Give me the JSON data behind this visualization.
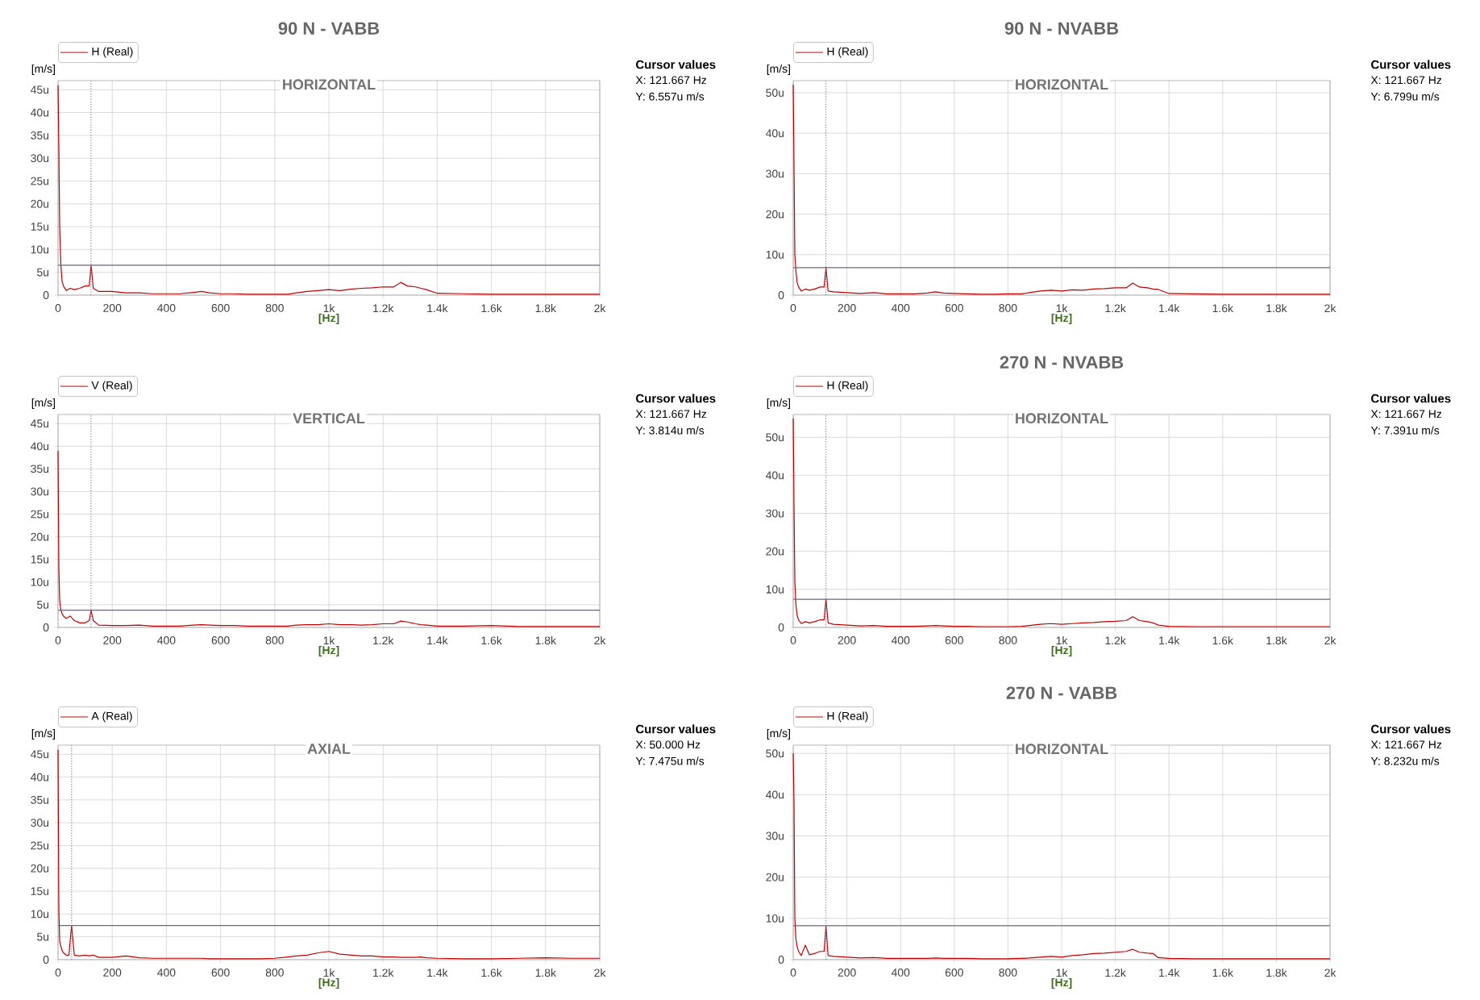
{
  "chart_data": [
    {
      "type": "line",
      "title": "90 N - VABB",
      "xlabel": "[Hz]",
      "ylabel": "[m/s]",
      "annotations": [
        "HORIZONTAL",
        "Cursor values",
        "X: 121.667 Hz",
        "Y: 6.557u m/s"
      ],
      "x": [
        0,
        3,
        6,
        10,
        15,
        20,
        30,
        45,
        60,
        80,
        100,
        115,
        122,
        130,
        150,
        200,
        250,
        300,
        350,
        400,
        450,
        500,
        530,
        560,
        600,
        650,
        700,
        750,
        800,
        850,
        880,
        920,
        960,
        1000,
        1040,
        1080,
        1120,
        1160,
        1200,
        1240,
        1265,
        1290,
        1320,
        1340,
        1360,
        1400,
        1500,
        1600,
        1700,
        1800,
        1900,
        2000
      ],
      "series": [
        {
          "name": "H (Real)",
          "color": "#c00000",
          "values": [
            46,
            32,
            15,
            7,
            3,
            2,
            1,
            1.5,
            1.2,
            1.5,
            2,
            2,
            6.5,
            1.5,
            0.8,
            0.8,
            0.5,
            0.5,
            0.3,
            0.3,
            0.3,
            0.6,
            0.8,
            0.5,
            0.3,
            0.3,
            0.2,
            0.2,
            0.2,
            0.2,
            0.5,
            0.8,
            1,
            1.2,
            1,
            1.3,
            1.5,
            1.6,
            1.8,
            1.8,
            2.8,
            2,
            1.8,
            1.5,
            1.2,
            0.4,
            0.3,
            0.2,
            0.2,
            0.2,
            0.2,
            0.2
          ]
        }
      ],
      "xlim": [
        0,
        2000
      ],
      "ylim": [
        0,
        47
      ],
      "xticks": [
        0,
        200,
        400,
        600,
        800,
        {
          "value": 1000,
          "label": "1k"
        },
        {
          "value": 1200,
          "label": "1.2k"
        },
        {
          "value": 1400,
          "label": "1.4k"
        },
        {
          "value": 1600,
          "label": "1.6k"
        },
        {
          "value": 1800,
          "label": "1.8k"
        },
        {
          "value": 2000,
          "label": "2k"
        }
      ],
      "yticks": [
        0,
        {
          "value": 5,
          "label": "5u"
        },
        {
          "value": 10,
          "label": "10u"
        },
        {
          "value": 15,
          "label": "15u"
        },
        {
          "value": 20,
          "label": "20u"
        },
        {
          "value": 25,
          "label": "25u"
        },
        {
          "value": 30,
          "label": "30u"
        },
        {
          "value": 35,
          "label": "35u"
        },
        {
          "value": 40,
          "label": "40u"
        },
        {
          "value": 45,
          "label": "45u"
        }
      ],
      "ref_lines": [
        {
          "axis": "x",
          "value": 121.667,
          "color": "#8080a0",
          "line_style": "dotted"
        },
        {
          "axis": "y",
          "value": 6.557,
          "color": "#6e6480",
          "line_style": "solid"
        }
      ],
      "grid": true,
      "legend": "top"
    },
    {
      "type": "line",
      "title": "90 N - NVABB",
      "xlabel": "[Hz]",
      "ylabel": "[m/s]",
      "annotations": [
        "HORIZONTAL",
        "Cursor values",
        "X: 121.667 Hz",
        "Y: 6.799u m/s"
      ],
      "x": [
        0,
        3,
        6,
        10,
        15,
        20,
        30,
        45,
        60,
        80,
        100,
        115,
        122,
        130,
        150,
        200,
        250,
        300,
        350,
        400,
        450,
        500,
        530,
        560,
        600,
        650,
        700,
        750,
        800,
        850,
        880,
        920,
        960,
        1000,
        1040,
        1080,
        1120,
        1160,
        1200,
        1240,
        1265,
        1290,
        1320,
        1340,
        1360,
        1400,
        1500,
        1600,
        1700,
        1800,
        1900,
        2000
      ],
      "series": [
        {
          "name": "H (Real)",
          "color": "#c00000",
          "values": [
            52,
            32,
            10,
            6,
            3,
            2,
            1,
            1.5,
            1.2,
            1.5,
            2,
            2,
            6.8,
            1,
            0.8,
            0.6,
            0.4,
            0.6,
            0.3,
            0.3,
            0.3,
            0.5,
            0.8,
            0.5,
            0.4,
            0.3,
            0.2,
            0.2,
            0.3,
            0.3,
            0.6,
            1,
            1.2,
            1,
            1.3,
            1.2,
            1.5,
            1.6,
            1.8,
            1.8,
            3,
            2,
            1.8,
            1.5,
            1.4,
            0.4,
            0.3,
            0.2,
            0.2,
            0.2,
            0.2,
            0.2
          ]
        }
      ],
      "xlim": [
        0,
        2000
      ],
      "ylim": [
        0,
        53
      ],
      "xticks": [
        0,
        200,
        400,
        600,
        800,
        {
          "value": 1000,
          "label": "1k"
        },
        {
          "value": 1200,
          "label": "1.2k"
        },
        {
          "value": 1400,
          "label": "1.4k"
        },
        {
          "value": 1600,
          "label": "1.6k"
        },
        {
          "value": 1800,
          "label": "1.8k"
        },
        {
          "value": 2000,
          "label": "2k"
        }
      ],
      "yticks": [
        0,
        {
          "value": 10,
          "label": "10u"
        },
        {
          "value": 20,
          "label": "20u"
        },
        {
          "value": 30,
          "label": "30u"
        },
        {
          "value": 40,
          "label": "40u"
        },
        {
          "value": 50,
          "label": "50u"
        }
      ],
      "ref_lines": [
        {
          "axis": "x",
          "value": 121.667,
          "color": "#8080a0",
          "line_style": "dotted"
        },
        {
          "axis": "y",
          "value": 6.799,
          "color": "#6e6480",
          "line_style": "solid"
        }
      ],
      "grid": true,
      "legend": "top"
    },
    {
      "type": "line",
      "xlabel": "[Hz]",
      "ylabel": "[m/s]",
      "annotations": [
        "VERTICAL",
        "Cursor values",
        "X: 121.667 Hz",
        "Y: 3.814u m/s"
      ],
      "x": [
        0,
        3,
        6,
        10,
        15,
        20,
        30,
        45,
        60,
        80,
        100,
        115,
        122,
        130,
        150,
        200,
        250,
        300,
        350,
        400,
        450,
        500,
        530,
        560,
        600,
        650,
        700,
        750,
        800,
        850,
        880,
        920,
        960,
        1000,
        1040,
        1080,
        1120,
        1160,
        1200,
        1240,
        1265,
        1290,
        1320,
        1340,
        1360,
        1400,
        1500,
        1600,
        1700,
        1800,
        1900,
        2000
      ],
      "series": [
        {
          "name": "V (Real)",
          "color": "#c00000",
          "values": [
            39,
            13,
            6,
            4,
            3,
            2.5,
            2,
            2.5,
            1.5,
            1,
            1,
            1.5,
            3.8,
            1.5,
            0.5,
            0.4,
            0.4,
            0.5,
            0.3,
            0.3,
            0.3,
            0.5,
            0.6,
            0.5,
            0.4,
            0.4,
            0.3,
            0.3,
            0.3,
            0.3,
            0.5,
            0.6,
            0.6,
            0.8,
            0.6,
            0.6,
            0.5,
            0.6,
            0.8,
            0.8,
            1.4,
            1.2,
            0.8,
            0.6,
            0.5,
            0.3,
            0.3,
            0.4,
            0.2,
            0.2,
            0.2,
            0.2
          ]
        }
      ],
      "xlim": [
        0,
        2000
      ],
      "ylim": [
        0,
        47
      ],
      "xticks": [
        0,
        200,
        400,
        600,
        800,
        {
          "value": 1000,
          "label": "1k"
        },
        {
          "value": 1200,
          "label": "1.2k"
        },
        {
          "value": 1400,
          "label": "1.4k"
        },
        {
          "value": 1600,
          "label": "1.6k"
        },
        {
          "value": 1800,
          "label": "1.8k"
        },
        {
          "value": 2000,
          "label": "2k"
        }
      ],
      "yticks": [
        0,
        {
          "value": 5,
          "label": "5u"
        },
        {
          "value": 10,
          "label": "10u"
        },
        {
          "value": 15,
          "label": "15u"
        },
        {
          "value": 20,
          "label": "20u"
        },
        {
          "value": 25,
          "label": "25u"
        },
        {
          "value": 30,
          "label": "30u"
        },
        {
          "value": 35,
          "label": "35u"
        },
        {
          "value": 40,
          "label": "40u"
        },
        {
          "value": 45,
          "label": "45u"
        }
      ],
      "ref_lines": [
        {
          "axis": "x",
          "value": 121.667,
          "color": "#8080a0",
          "line_style": "dotted"
        },
        {
          "axis": "y",
          "value": 3.814,
          "color": "#6e6480",
          "line_style": "solid"
        }
      ],
      "grid": true,
      "legend": "top"
    },
    {
      "type": "line",
      "title": "270 N - NVABB",
      "xlabel": "[Hz]",
      "ylabel": "[m/s]",
      "annotations": [
        "HORIZONTAL",
        "Cursor values",
        "X: 121.667 Hz",
        "Y: 7.391u m/s"
      ],
      "x": [
        0,
        3,
        6,
        10,
        15,
        20,
        30,
        45,
        60,
        80,
        100,
        115,
        122,
        130,
        150,
        200,
        250,
        300,
        350,
        400,
        450,
        500,
        530,
        560,
        600,
        650,
        700,
        750,
        800,
        850,
        880,
        920,
        960,
        1000,
        1040,
        1080,
        1120,
        1160,
        1200,
        1240,
        1265,
        1290,
        1320,
        1340,
        1360,
        1400,
        1500,
        1600,
        1700,
        1800,
        1900,
        2000
      ],
      "series": [
        {
          "name": "H (Real)",
          "color": "#c00000",
          "values": [
            55,
            32,
            12,
            6,
            3,
            2,
            1,
            1.5,
            1.2,
            1.5,
            2,
            2,
            7.4,
            1.2,
            0.8,
            0.6,
            0.4,
            0.5,
            0.3,
            0.3,
            0.3,
            0.4,
            0.5,
            0.4,
            0.3,
            0.3,
            0.2,
            0.2,
            0.2,
            0.3,
            0.5,
            0.8,
            1,
            0.8,
            1,
            1.2,
            1.3,
            1.5,
            1.6,
            1.8,
            2.8,
            1.8,
            1.5,
            1.2,
            0.6,
            0.3,
            0.2,
            0.2,
            0.2,
            0.2,
            0.2,
            0.2
          ]
        }
      ],
      "xlim": [
        0,
        2000
      ],
      "ylim": [
        0,
        56
      ],
      "xticks": [
        0,
        200,
        400,
        600,
        800,
        {
          "value": 1000,
          "label": "1k"
        },
        {
          "value": 1200,
          "label": "1.2k"
        },
        {
          "value": 1400,
          "label": "1.4k"
        },
        {
          "value": 1600,
          "label": "1.6k"
        },
        {
          "value": 1800,
          "label": "1.8k"
        },
        {
          "value": 2000,
          "label": "2k"
        }
      ],
      "yticks": [
        0,
        {
          "value": 10,
          "label": "10u"
        },
        {
          "value": 20,
          "label": "20u"
        },
        {
          "value": 30,
          "label": "30u"
        },
        {
          "value": 40,
          "label": "40u"
        },
        {
          "value": 50,
          "label": "50u"
        }
      ],
      "ref_lines": [
        {
          "axis": "x",
          "value": 121.667,
          "color": "#8080a0",
          "line_style": "dotted"
        },
        {
          "axis": "y",
          "value": 7.391,
          "color": "#6e6480",
          "line_style": "solid"
        }
      ],
      "grid": true,
      "legend": "top"
    },
    {
      "type": "line",
      "xlabel": "[Hz]",
      "ylabel": "[m/s]",
      "annotations": [
        "AXIAL",
        "Cursor values",
        "X: 50.000 Hz",
        "Y: 7.475u m/s"
      ],
      "x": [
        0,
        3,
        6,
        10,
        15,
        20,
        30,
        40,
        50,
        60,
        80,
        100,
        115,
        130,
        150,
        200,
        250,
        300,
        350,
        400,
        450,
        500,
        530,
        560,
        600,
        650,
        700,
        750,
        800,
        850,
        880,
        920,
        960,
        1000,
        1040,
        1080,
        1120,
        1160,
        1200,
        1240,
        1265,
        1290,
        1320,
        1340,
        1360,
        1400,
        1500,
        1600,
        1700,
        1800,
        1900,
        2000
      ],
      "series": [
        {
          "name": "A (Real)",
          "color": "#c00000",
          "values": [
            46,
            11,
            4,
            3,
            2,
            1.5,
            1,
            1,
            7.5,
            1,
            0.8,
            1,
            0.8,
            1,
            0.5,
            0.5,
            0.8,
            0.4,
            0.3,
            0.3,
            0.3,
            0.3,
            0.3,
            0.2,
            0.2,
            0.2,
            0.2,
            0.2,
            0.3,
            0.6,
            0.8,
            1,
            1.5,
            1.8,
            1.2,
            1,
            0.8,
            0.8,
            0.6,
            0.6,
            0.5,
            0.5,
            0.5,
            0.6,
            0.4,
            0.3,
            0.2,
            0.2,
            0.3,
            0.4,
            0.3,
            0.3
          ]
        }
      ],
      "xlim": [
        0,
        2000
      ],
      "ylim": [
        0,
        47
      ],
      "xticks": [
        0,
        200,
        400,
        600,
        800,
        {
          "value": 1000,
          "label": "1k"
        },
        {
          "value": 1200,
          "label": "1.2k"
        },
        {
          "value": 1400,
          "label": "1.4k"
        },
        {
          "value": 1600,
          "label": "1.6k"
        },
        {
          "value": 1800,
          "label": "1.8k"
        },
        {
          "value": 2000,
          "label": "2k"
        }
      ],
      "yticks": [
        0,
        {
          "value": 5,
          "label": "5u"
        },
        {
          "value": 10,
          "label": "10u"
        },
        {
          "value": 15,
          "label": "15u"
        },
        {
          "value": 20,
          "label": "20u"
        },
        {
          "value": 25,
          "label": "25u"
        },
        {
          "value": 30,
          "label": "30u"
        },
        {
          "value": 35,
          "label": "35u"
        },
        {
          "value": 40,
          "label": "40u"
        },
        {
          "value": 45,
          "label": "45u"
        }
      ],
      "ref_lines": [
        {
          "axis": "x",
          "value": 50,
          "color": "#8080a0",
          "line_style": "dotted"
        },
        {
          "axis": "y",
          "value": 7.475,
          "color": "#6e6480",
          "line_style": "solid"
        }
      ],
      "grid": true,
      "legend": "top"
    },
    {
      "type": "line",
      "title": "270 N - VABB",
      "xlabel": "[Hz]",
      "ylabel": "[m/s]",
      "annotations": [
        "HORIZONTAL",
        "Cursor values",
        "X: 121.667 Hz",
        "Y: 8.232u m/s"
      ],
      "x": [
        0,
        3,
        6,
        10,
        15,
        20,
        30,
        45,
        60,
        80,
        100,
        115,
        122,
        130,
        150,
        200,
        250,
        300,
        350,
        400,
        450,
        500,
        530,
        560,
        600,
        650,
        700,
        750,
        800,
        850,
        880,
        920,
        960,
        1000,
        1040,
        1080,
        1120,
        1160,
        1200,
        1240,
        1265,
        1290,
        1320,
        1340,
        1360,
        1400,
        1500,
        1600,
        1700,
        1800,
        1900,
        2000
      ],
      "series": [
        {
          "name": "H (Real)",
          "color": "#c00000",
          "values": [
            50,
            38,
            10,
            5,
            3,
            2,
            1,
            3.5,
            1.2,
            1.5,
            2,
            2,
            8.2,
            1,
            0.8,
            0.6,
            0.4,
            0.5,
            0.3,
            0.3,
            0.3,
            0.3,
            0.4,
            0.3,
            0.3,
            0.3,
            0.2,
            0.2,
            0.2,
            0.3,
            0.4,
            0.6,
            0.8,
            0.6,
            1,
            1.2,
            1.5,
            1.6,
            1.8,
            2,
            2.5,
            1.8,
            1.6,
            1.5,
            0.5,
            0.3,
            0.2,
            0.2,
            0.2,
            0.2,
            0.2,
            0.2
          ]
        }
      ],
      "xlim": [
        0,
        2000
      ],
      "ylim": [
        0,
        52
      ],
      "xticks": [
        0,
        200,
        400,
        600,
        800,
        {
          "value": 1000,
          "label": "1k"
        },
        {
          "value": 1200,
          "label": "1.2k"
        },
        {
          "value": 1400,
          "label": "1.4k"
        },
        {
          "value": 1600,
          "label": "1.6k"
        },
        {
          "value": 1800,
          "label": "1.8k"
        },
        {
          "value": 2000,
          "label": "2k"
        }
      ],
      "yticks": [
        0,
        {
          "value": 10,
          "label": "10u"
        },
        {
          "value": 20,
          "label": "20u"
        },
        {
          "value": 30,
          "label": "30u"
        },
        {
          "value": 40,
          "label": "40u"
        },
        {
          "value": 50,
          "label": "50u"
        }
      ],
      "ref_lines": [
        {
          "axis": "x",
          "value": 121.667,
          "color": "#8080a0",
          "line_style": "dotted"
        },
        {
          "axis": "y",
          "value": 8.232,
          "color": "#6e6480",
          "line_style": "solid"
        }
      ],
      "grid": true,
      "legend": "top"
    }
  ]
}
